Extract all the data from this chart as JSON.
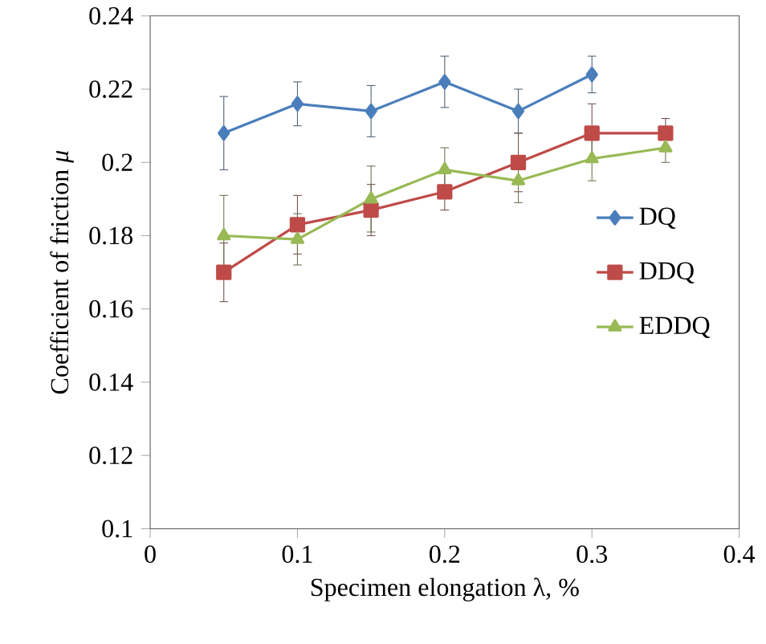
{
  "chart_data": {
    "type": "line",
    "xlabel": "Specimen elongation λ, %",
    "ylabel": "Coefficient of friction *μ*",
    "xlim": [
      0,
      0.4
    ],
    "xticks": [
      0,
      0.1,
      0.2,
      0.3,
      0.4
    ],
    "ylim": [
      0.1,
      0.24
    ],
    "yticks": [
      0.1,
      0.12,
      0.14,
      0.16,
      0.18,
      0.2,
      0.22,
      0.24
    ],
    "grid": false,
    "legend": "right",
    "series": [
      {
        "name": "DQ",
        "color": "#4a7ebb",
        "marker": "diamond",
        "x": [
          0.05,
          0.1,
          0.15,
          0.2,
          0.25,
          0.3
        ],
        "values": [
          0.208,
          0.216,
          0.214,
          0.222,
          0.214,
          0.224
        ],
        "errors": [
          0.01,
          0.006,
          0.007,
          0.007,
          0.006,
          0.005
        ]
      },
      {
        "name": "DDQ",
        "color": "#be4b48",
        "marker": "square",
        "x": [
          0.05,
          0.1,
          0.15,
          0.2,
          0.25,
          0.3,
          0.35
        ],
        "values": [
          0.17,
          0.183,
          0.187,
          0.192,
          0.2,
          0.208,
          0.208
        ],
        "errors": [
          0.008,
          0.008,
          0.007,
          0.005,
          0.008,
          0.008,
          0.004
        ]
      },
      {
        "name": "EDDQ",
        "color": "#98b954",
        "marker": "triangle",
        "x": [
          0.05,
          0.1,
          0.15,
          0.2,
          0.25,
          0.3,
          0.35
        ],
        "values": [
          0.18,
          0.179,
          0.19,
          0.198,
          0.195,
          0.201,
          0.204
        ],
        "errors": [
          0.011,
          0.007,
          0.009,
          0.006,
          0.006,
          0.006,
          0.004
        ]
      }
    ]
  }
}
